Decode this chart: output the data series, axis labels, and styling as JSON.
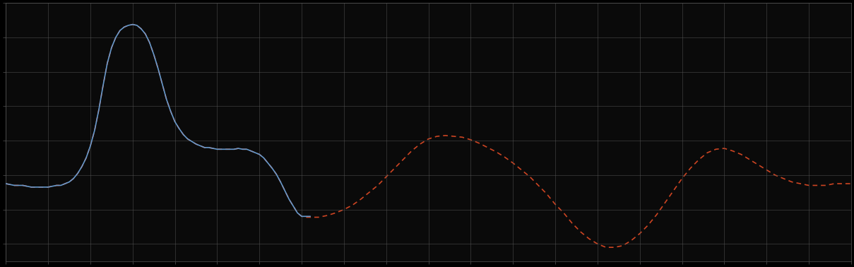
{
  "title": "",
  "background_color": "#000000",
  "plot_bg_color": "#0a0a0a",
  "grid_color": "#555555",
  "fig_width": 12.09,
  "fig_height": 3.78,
  "dpi": 100,
  "xlim": [
    0,
    1
  ],
  "ylim": [
    -0.5,
    1.0
  ],
  "blue_color": "#6699cc",
  "red_color": "#cc4422",
  "line_width": 1.2,
  "n_xticks": 21,
  "n_yticks": 9,
  "blue_x": [
    0.0,
    0.01,
    0.02,
    0.03,
    0.04,
    0.05,
    0.06,
    0.065,
    0.07,
    0.075,
    0.08,
    0.085,
    0.09,
    0.095,
    0.1,
    0.105,
    0.11,
    0.115,
    0.12,
    0.125,
    0.13,
    0.135,
    0.14,
    0.145,
    0.15,
    0.155,
    0.16,
    0.165,
    0.17,
    0.175,
    0.18,
    0.185,
    0.19,
    0.195,
    0.2,
    0.205,
    0.21,
    0.215,
    0.22,
    0.225,
    0.23,
    0.235,
    0.24,
    0.245,
    0.25,
    0.255,
    0.26,
    0.265,
    0.27,
    0.275,
    0.28,
    0.285,
    0.29,
    0.295,
    0.3,
    0.305,
    0.31,
    0.315,
    0.32,
    0.325,
    0.33,
    0.335,
    0.34,
    0.345,
    0.35,
    0.355,
    0.36
  ],
  "blue_y": [
    -0.05,
    -0.06,
    -0.06,
    -0.07,
    -0.07,
    -0.07,
    -0.06,
    -0.06,
    -0.05,
    -0.04,
    -0.02,
    0.01,
    0.05,
    0.1,
    0.17,
    0.26,
    0.38,
    0.52,
    0.65,
    0.74,
    0.8,
    0.84,
    0.86,
    0.87,
    0.875,
    0.87,
    0.85,
    0.82,
    0.77,
    0.7,
    0.62,
    0.53,
    0.44,
    0.37,
    0.31,
    0.27,
    0.235,
    0.21,
    0.195,
    0.18,
    0.17,
    0.16,
    0.16,
    0.155,
    0.15,
    0.15,
    0.15,
    0.15,
    0.15,
    0.155,
    0.15,
    0.15,
    0.14,
    0.13,
    0.12,
    0.1,
    0.07,
    0.04,
    0.005,
    -0.04,
    -0.09,
    -0.14,
    -0.18,
    -0.22,
    -0.24,
    -0.24,
    -0.24
  ],
  "red_x": [
    0.0,
    0.01,
    0.02,
    0.03,
    0.04,
    0.05,
    0.06,
    0.065,
    0.07,
    0.075,
    0.08,
    0.085,
    0.09,
    0.095,
    0.1,
    0.105,
    0.11,
    0.115,
    0.12,
    0.125,
    0.13,
    0.135,
    0.14,
    0.145,
    0.15,
    0.155,
    0.16,
    0.165,
    0.17,
    0.175,
    0.18,
    0.185,
    0.19,
    0.195,
    0.2,
    0.205,
    0.21,
    0.215,
    0.22,
    0.225,
    0.23,
    0.235,
    0.24,
    0.245,
    0.25,
    0.255,
    0.26,
    0.265,
    0.27,
    0.275,
    0.28,
    0.285,
    0.29,
    0.295,
    0.3,
    0.305,
    0.31,
    0.315,
    0.32,
    0.325,
    0.33,
    0.335,
    0.34,
    0.345,
    0.35,
    0.355,
    0.36,
    0.37,
    0.38,
    0.39,
    0.4,
    0.41,
    0.42,
    0.43,
    0.44,
    0.45,
    0.46,
    0.47,
    0.48,
    0.49,
    0.5,
    0.51,
    0.52,
    0.53,
    0.54,
    0.55,
    0.56,
    0.57,
    0.58,
    0.59,
    0.6,
    0.61,
    0.62,
    0.63,
    0.64,
    0.65,
    0.66,
    0.67,
    0.68,
    0.69,
    0.7,
    0.71,
    0.72,
    0.73,
    0.74,
    0.75,
    0.76,
    0.77,
    0.78,
    0.79,
    0.8,
    0.81,
    0.82,
    0.83,
    0.84,
    0.85,
    0.86,
    0.87,
    0.88,
    0.89,
    0.9,
    0.91,
    0.92,
    0.93,
    0.94,
    0.95,
    0.96,
    0.97,
    0.98,
    0.99,
    1.0
  ],
  "red_y": [
    -0.05,
    -0.06,
    -0.06,
    -0.07,
    -0.07,
    -0.07,
    -0.06,
    -0.06,
    -0.05,
    -0.04,
    -0.02,
    0.01,
    0.05,
    0.1,
    0.17,
    0.26,
    0.38,
    0.52,
    0.65,
    0.74,
    0.8,
    0.84,
    0.86,
    0.87,
    0.875,
    0.87,
    0.85,
    0.82,
    0.77,
    0.7,
    0.62,
    0.53,
    0.44,
    0.37,
    0.31,
    0.27,
    0.235,
    0.21,
    0.195,
    0.18,
    0.17,
    0.16,
    0.16,
    0.155,
    0.15,
    0.15,
    0.15,
    0.15,
    0.15,
    0.155,
    0.15,
    0.15,
    0.14,
    0.13,
    0.12,
    0.1,
    0.07,
    0.04,
    0.005,
    -0.04,
    -0.09,
    -0.14,
    -0.18,
    -0.22,
    -0.24,
    -0.245,
    -0.245,
    -0.245,
    -0.235,
    -0.22,
    -0.2,
    -0.175,
    -0.14,
    -0.1,
    -0.06,
    -0.01,
    0.04,
    0.09,
    0.14,
    0.18,
    0.21,
    0.225,
    0.23,
    0.225,
    0.22,
    0.205,
    0.185,
    0.16,
    0.135,
    0.105,
    0.07,
    0.03,
    -0.01,
    -0.06,
    -0.11,
    -0.17,
    -0.22,
    -0.28,
    -0.33,
    -0.37,
    -0.4,
    -0.42,
    -0.42,
    -0.41,
    -0.38,
    -0.34,
    -0.29,
    -0.23,
    -0.16,
    -0.09,
    -0.02,
    0.04,
    0.09,
    0.13,
    0.15,
    0.155,
    0.14,
    0.12,
    0.09,
    0.06,
    0.03,
    0.0,
    -0.02,
    -0.04,
    -0.05,
    -0.06,
    -0.06,
    -0.06,
    -0.05,
    -0.05,
    -0.05
  ]
}
